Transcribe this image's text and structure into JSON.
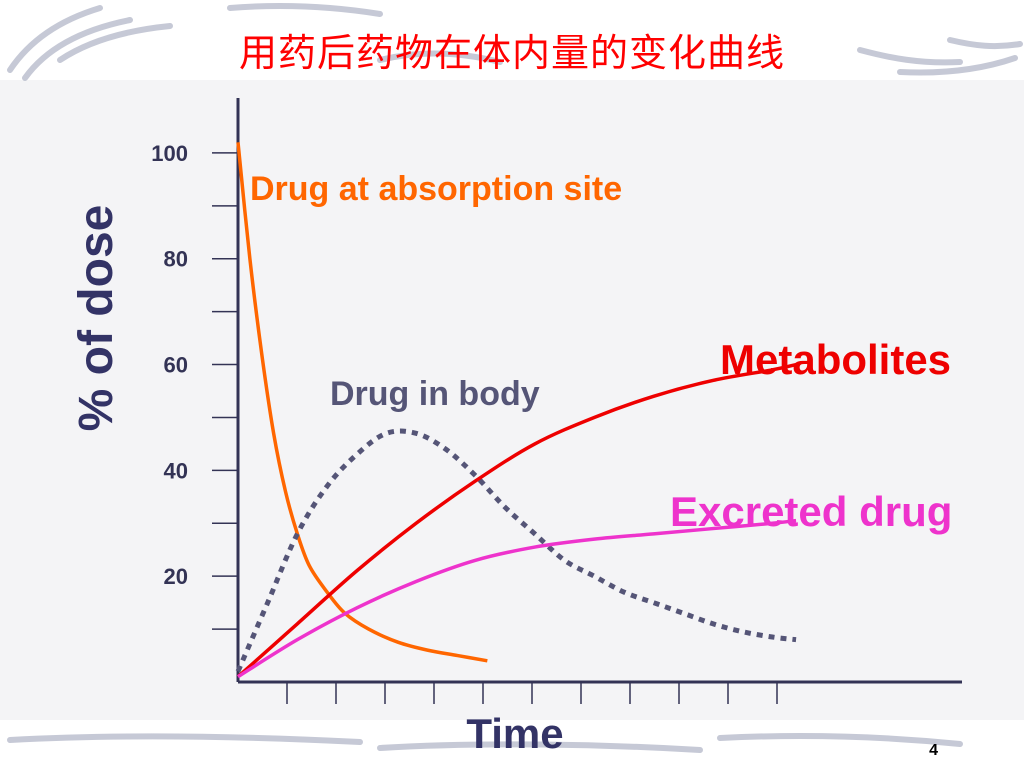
{
  "slide": {
    "title": "用药后药物在体内量的变化曲线",
    "page_number": "4"
  },
  "chart_data": {
    "type": "line",
    "title": "用药后药物在体内量的变化曲线",
    "xlabel": "Time",
    "ylabel": "% of dose",
    "ylim": [
      0,
      110
    ],
    "xlim": [
      0,
      10
    ],
    "y_ticks": [
      20,
      40,
      60,
      80,
      100
    ],
    "x_tick_labels": false,
    "grid": false,
    "legend": "inline labels",
    "series": [
      {
        "name": "Drug at absorption site",
        "color": "#ff6600",
        "style": "solid",
        "points": [
          [
            0,
            102
          ],
          [
            0.2,
            80
          ],
          [
            0.4,
            62
          ],
          [
            0.6,
            47
          ],
          [
            0.8,
            36
          ],
          [
            1.0,
            28
          ],
          [
            1.2,
            22
          ],
          [
            1.5,
            17
          ],
          [
            1.8,
            13
          ],
          [
            2.2,
            10
          ],
          [
            2.7,
            7.5
          ],
          [
            3.2,
            6
          ],
          [
            3.7,
            5
          ],
          [
            4.2,
            4
          ]
        ]
      },
      {
        "name": "Drug in body",
        "color": "#555577",
        "style": "dotted",
        "points": [
          [
            0,
            2
          ],
          [
            0.5,
            15
          ],
          [
            1.0,
            28
          ],
          [
            1.5,
            37
          ],
          [
            2.0,
            43
          ],
          [
            2.5,
            47
          ],
          [
            3.0,
            47
          ],
          [
            3.5,
            44
          ],
          [
            4.0,
            39
          ],
          [
            4.5,
            33
          ],
          [
            5.0,
            28
          ],
          [
            5.5,
            23
          ],
          [
            6.0,
            20
          ],
          [
            6.5,
            17
          ],
          [
            7.0,
            15
          ],
          [
            7.5,
            13
          ],
          [
            8.0,
            11
          ],
          [
            8.5,
            9.5
          ],
          [
            9.0,
            8.5
          ],
          [
            9.4,
            8
          ]
        ]
      },
      {
        "name": "Metabolites",
        "color": "#ee0000",
        "style": "solid",
        "points": [
          [
            0,
            1
          ],
          [
            1.0,
            11
          ],
          [
            2.0,
            21
          ],
          [
            3.0,
            30
          ],
          [
            4.0,
            38
          ],
          [
            5.0,
            45
          ],
          [
            6.0,
            50
          ],
          [
            7.0,
            54
          ],
          [
            8.0,
            57
          ],
          [
            9.0,
            59
          ],
          [
            9.4,
            60
          ]
        ]
      },
      {
        "name": "Excreted drug",
        "color": "#ee33cc",
        "style": "solid",
        "points": [
          [
            0,
            1
          ],
          [
            1.0,
            8
          ],
          [
            2.0,
            14
          ],
          [
            3.0,
            19
          ],
          [
            4.0,
            23
          ],
          [
            5.0,
            25.5
          ],
          [
            6.0,
            27
          ],
          [
            7.0,
            28
          ],
          [
            8.0,
            29
          ],
          [
            9.0,
            30
          ],
          [
            9.4,
            30.5
          ]
        ]
      }
    ],
    "labels": [
      {
        "series": "Drug at absorption site",
        "text": "Drug at absorption site",
        "color": "#ff6600"
      },
      {
        "series": "Drug in body",
        "text": "Drug in body",
        "color": "#555577"
      },
      {
        "series": "Metabolites",
        "text": "Metabolites",
        "color": "#ee0000"
      },
      {
        "series": "Excreted drug",
        "text": "Excreted drug",
        "color": "#ee33cc"
      }
    ]
  }
}
